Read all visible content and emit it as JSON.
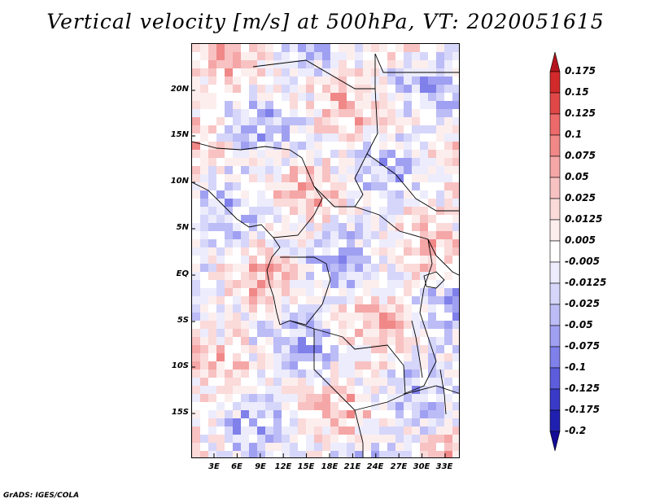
{
  "title": "Vertical velocity [m/s] at 500hPa, VT: 2020051615",
  "footer": "GrADS: IGES/COLA",
  "axes": {
    "lat_ticks": [
      "20N",
      "15N",
      "10N",
      "5N",
      "EQ",
      "5S",
      "10S",
      "15S"
    ],
    "lon_ticks": [
      "3E",
      "6E",
      "9E",
      "12E",
      "15E",
      "18E",
      "21E",
      "24E",
      "27E",
      "30E",
      "33E"
    ]
  },
  "colorbar": {
    "levels": [
      "0.175",
      "0.15",
      "0.125",
      "0.1",
      "0.075",
      "0.05",
      "0.025",
      "0.0125",
      "0.005",
      "-0.005",
      "-0.0125",
      "-0.025",
      "-0.05",
      "-0.075",
      "-0.1",
      "-0.125",
      "-0.175",
      "-0.2"
    ],
    "colors": [
      "#b4141c",
      "#d22a2a",
      "#e04848",
      "#ec6a6a",
      "#f08888",
      "#f5a6a6",
      "#f8c2c2",
      "#fbdada",
      "#fdeeee",
      "#ffffff",
      "#ececfc",
      "#d6d6fa",
      "#bcbcf6",
      "#a0a0f2",
      "#8080ea",
      "#5c5cdc",
      "#3a3ac8",
      "#2020b0",
      "#140a96"
    ]
  },
  "chart_data": {
    "type": "heatmap",
    "title": "Vertical velocity [m/s] at 500hPa, VT: 2020051615",
    "variable": "Vertical velocity",
    "units": "m/s",
    "level": "500hPa",
    "valid_time": "2020051615",
    "lon_range": [
      0,
      35
    ],
    "lat_range": [
      -20,
      24.5
    ],
    "color_levels": [
      -0.2,
      -0.175,
      -0.125,
      -0.1,
      -0.075,
      -0.05,
      -0.025,
      -0.0125,
      -0.005,
      0.005,
      0.0125,
      0.025,
      0.05,
      0.075,
      0.1,
      0.125,
      0.15,
      0.175
    ]
  }
}
